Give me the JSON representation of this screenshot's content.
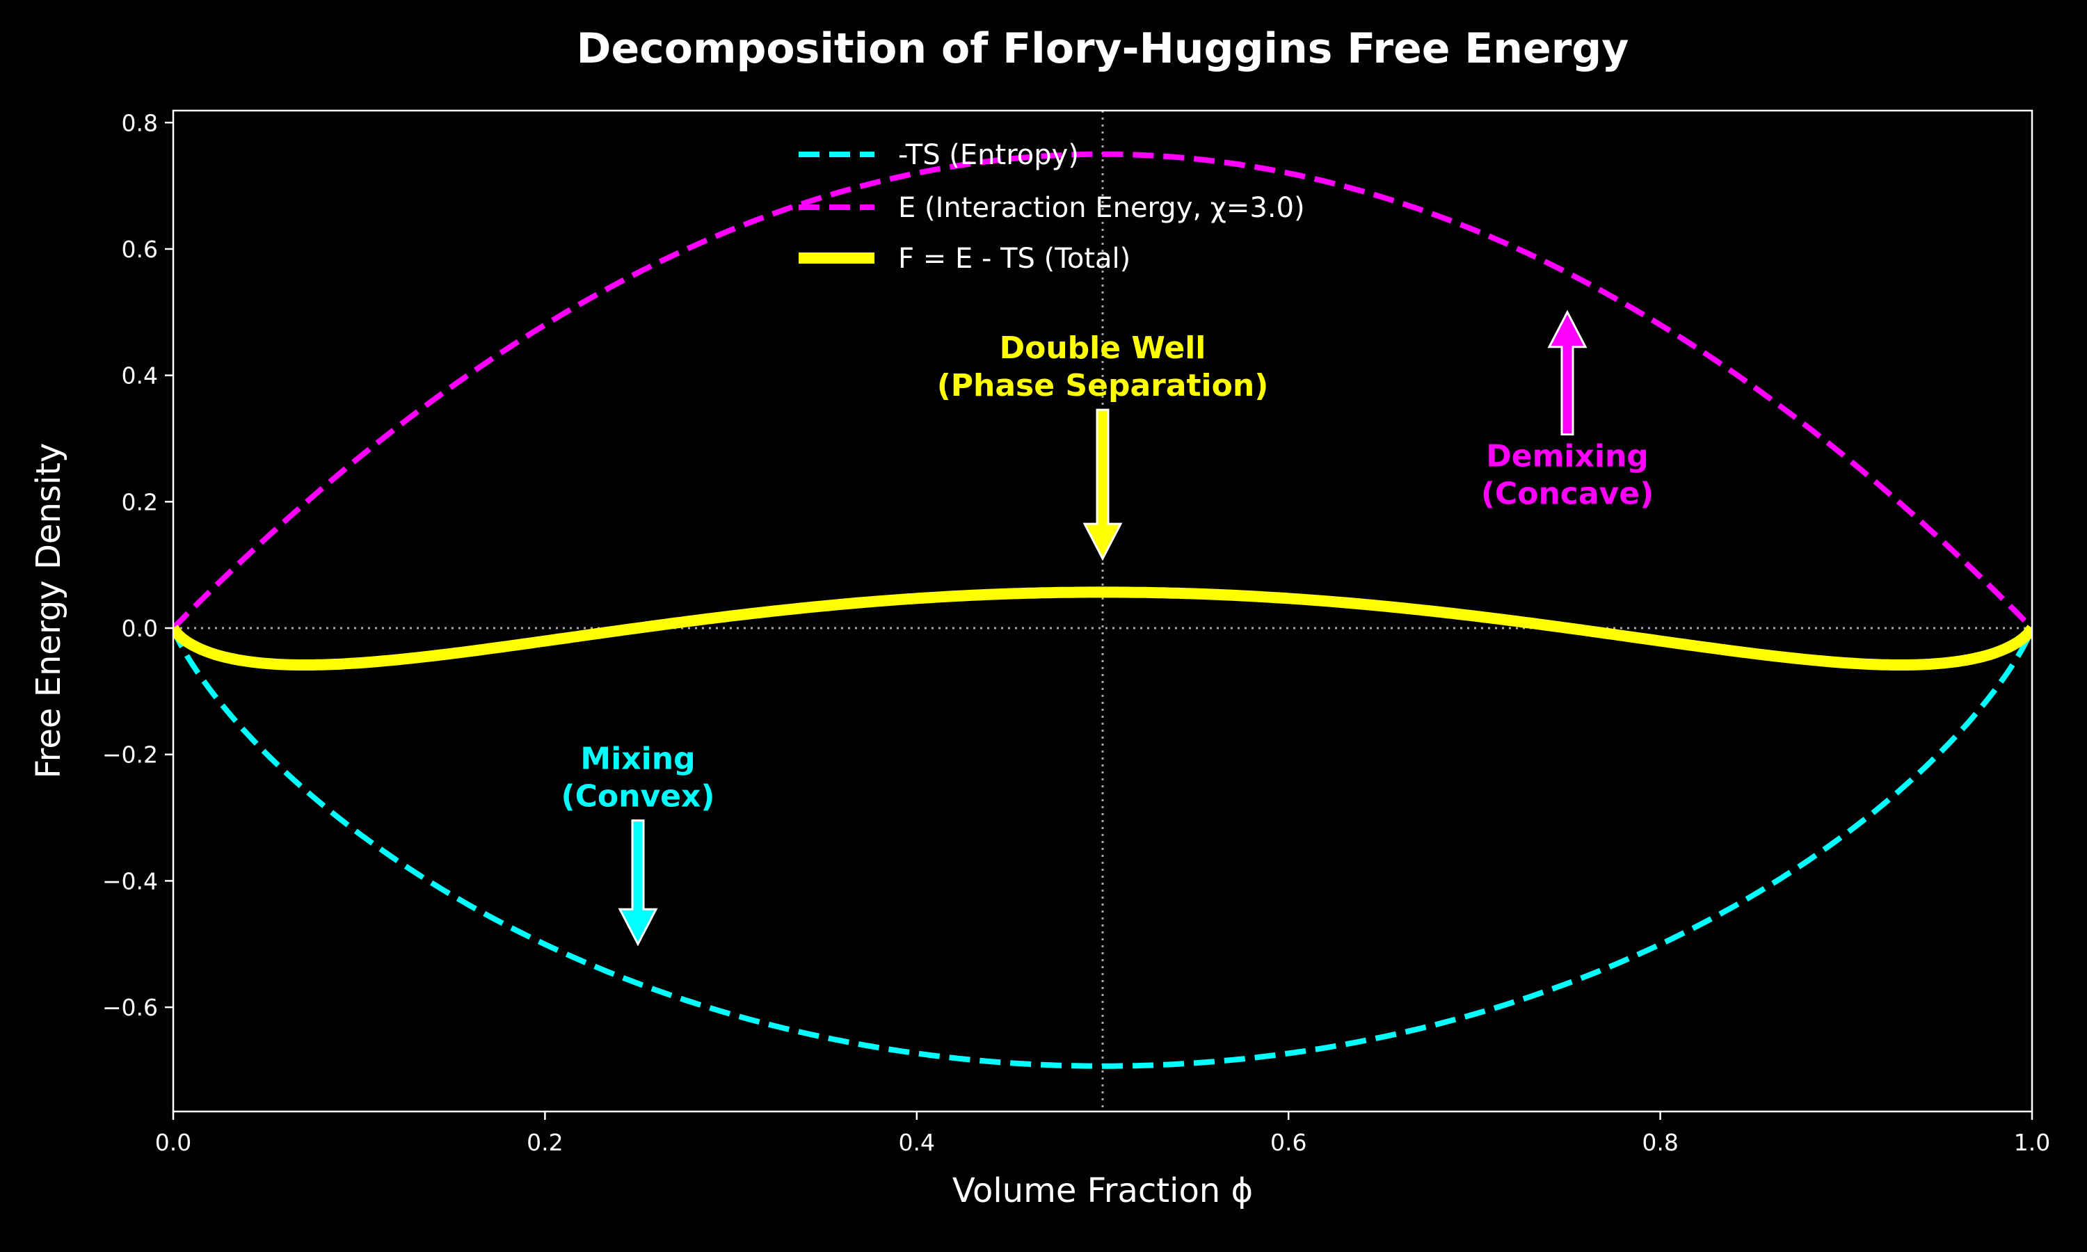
{
  "chart_data": {
    "type": "line",
    "title": "Decomposition of Flory-Huggins Free Energy",
    "xlabel": "Volume Fraction ϕ",
    "ylabel": "Free Energy Density",
    "xlim": [
      0.0,
      1.0
    ],
    "ylim": [
      -0.765,
      0.819
    ],
    "xticks": [
      0.0,
      0.2,
      0.4,
      0.6,
      0.8,
      1.0
    ],
    "xtick_labels": [
      "0.0",
      "0.2",
      "0.4",
      "0.6",
      "0.8",
      "1.0"
    ],
    "yticks": [
      -0.6,
      -0.4,
      -0.2,
      0.0,
      0.2,
      0.4,
      0.6,
      0.8
    ],
    "ytick_labels": [
      "−0.6",
      "−0.4",
      "−0.2",
      "0.0",
      "0.2",
      "0.4",
      "0.6",
      "0.8"
    ],
    "grid": false,
    "legend_placement": "upper-center",
    "background": "#000000",
    "chi": 3.0,
    "series": [
      {
        "name": "-TS (Entropy)",
        "formula": "phi*ln(phi) + (1-phi)*ln(1-phi)",
        "color": "#00ffff",
        "style": "dashed"
      },
      {
        "name": "E (Interaction Energy, χ=3.0)",
        "formula": "chi*phi*(1-phi)",
        "color": "#ff00ff",
        "style": "dashed"
      },
      {
        "name": "F = E - TS (Total)",
        "formula": "E + (-TS)",
        "color": "#ffff00",
        "style": "solid"
      }
    ],
    "reference_lines": [
      {
        "orientation": "vertical",
        "x": 0.5,
        "color": "#aaaaaa",
        "style": "dotted"
      },
      {
        "orientation": "horizontal",
        "y": 0.0,
        "color": "#aaaaaa",
        "style": "dotted"
      }
    ],
    "annotations": [
      {
        "lines": [
          "Double Well",
          "(Phase Separation)"
        ],
        "color": "#ffff00",
        "text_xy": [
          0.5,
          0.35
        ],
        "arrow_xy": [
          0.5,
          0.11
        ]
      },
      {
        "lines": [
          "Demixing",
          "(Concave)"
        ],
        "color": "#ff00ff",
        "text_xy": [
          0.75,
          0.3
        ],
        "arrow_xy": [
          0.75,
          0.5
        ]
      },
      {
        "lines": [
          "Mixing",
          "(Convex)"
        ],
        "color": "#00ffff",
        "text_xy": [
          0.25,
          -0.3
        ],
        "arrow_xy": [
          0.25,
          -0.5
        ]
      }
    ]
  }
}
